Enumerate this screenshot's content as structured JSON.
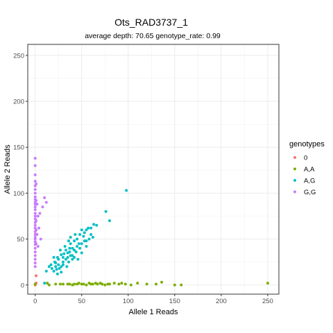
{
  "chart_data": {
    "type": "scatter",
    "title": "Ots_RAD3737_1",
    "subtitle": "average depth:  70.65  genotype_rate:  0.99",
    "xlabel": "Allele 1 Reads",
    "ylabel": "Allele 2 Reads",
    "xlim": [
      -8,
      262
    ],
    "ylim": [
      -10,
      262
    ],
    "xticks": [
      0,
      50,
      100,
      150,
      200,
      250
    ],
    "yticks": [
      0,
      50,
      100,
      150,
      200,
      250
    ],
    "grid": true,
    "legend": {
      "title": "genotypes",
      "placement": "right"
    },
    "series": [
      {
        "name": "0",
        "color": "#F8766D",
        "points": [
          [
            0,
            0
          ],
          [
            1,
            10
          ],
          [
            1,
            2
          ]
        ]
      },
      {
        "name": "A,A",
        "color": "#7CAE00",
        "points": [
          [
            0,
            1
          ],
          [
            13,
            2
          ],
          [
            15,
            0
          ],
          [
            22,
            1
          ],
          [
            27,
            1
          ],
          [
            30,
            1
          ],
          [
            35,
            1
          ],
          [
            37,
            1
          ],
          [
            40,
            0
          ],
          [
            42,
            1
          ],
          [
            45,
            1
          ],
          [
            47,
            2
          ],
          [
            50,
            1
          ],
          [
            52,
            1
          ],
          [
            55,
            0
          ],
          [
            58,
            2
          ],
          [
            60,
            1
          ],
          [
            62,
            1
          ],
          [
            65,
            2
          ],
          [
            67,
            1
          ],
          [
            70,
            2
          ],
          [
            72,
            1
          ],
          [
            75,
            0
          ],
          [
            78,
            1
          ],
          [
            80,
            1
          ],
          [
            85,
            2
          ],
          [
            90,
            1
          ],
          [
            93,
            2
          ],
          [
            97,
            1
          ],
          [
            103,
            0
          ],
          [
            110,
            2
          ],
          [
            120,
            1
          ],
          [
            130,
            1
          ],
          [
            136,
            3
          ],
          [
            150,
            0
          ],
          [
            157,
            0
          ],
          [
            250,
            2
          ]
        ]
      },
      {
        "name": "A,G",
        "color": "#00BFC4",
        "points": [
          [
            98,
            103
          ],
          [
            76,
            80
          ],
          [
            80,
            70
          ],
          [
            63,
            66
          ],
          [
            55,
            60
          ],
          [
            53,
            57
          ],
          [
            66,
            65
          ],
          [
            57,
            62
          ],
          [
            60,
            62
          ],
          [
            60,
            55
          ],
          [
            62,
            52
          ],
          [
            48,
            55
          ],
          [
            50,
            60
          ],
          [
            52,
            53
          ],
          [
            45,
            50
          ],
          [
            47,
            45
          ],
          [
            42,
            48
          ],
          [
            38,
            45
          ],
          [
            40,
            40
          ],
          [
            37,
            40
          ],
          [
            35,
            35
          ],
          [
            33,
            38
          ],
          [
            30,
            30
          ],
          [
            28,
            33
          ],
          [
            25,
            28
          ],
          [
            30,
            25
          ],
          [
            22,
            24
          ],
          [
            20,
            30
          ],
          [
            22,
            20
          ],
          [
            23,
            17
          ],
          [
            20,
            15
          ],
          [
            25,
            22
          ],
          [
            35,
            30
          ],
          [
            42,
            38
          ],
          [
            45,
            42
          ],
          [
            50,
            45
          ],
          [
            55,
            48
          ],
          [
            40,
            32
          ],
          [
            33,
            28
          ],
          [
            28,
            20
          ],
          [
            18,
            18
          ],
          [
            15,
            20
          ],
          [
            17,
            22
          ],
          [
            12,
            15
          ],
          [
            30,
            22
          ],
          [
            36,
            25
          ],
          [
            38,
            32
          ],
          [
            44,
            36
          ],
          [
            48,
            40
          ],
          [
            53,
            48
          ],
          [
            46,
            28
          ],
          [
            27,
            38
          ],
          [
            32,
            42
          ],
          [
            36,
            48
          ],
          [
            26,
            18
          ],
          [
            24,
            30
          ],
          [
            21,
            25
          ],
          [
            43,
            55
          ],
          [
            38,
            52
          ],
          [
            58,
            50
          ],
          [
            10,
            2
          ],
          [
            40,
            28
          ],
          [
            34,
            20
          ],
          [
            28,
            14
          ],
          [
            50,
            35
          ],
          [
            55,
            42
          ],
          [
            31,
            34
          ],
          [
            37,
            36
          ],
          [
            42,
            30
          ],
          [
            24,
            12
          ]
        ]
      },
      {
        "name": "G,G",
        "color": "#C77CFF",
        "points": [
          [
            0,
            138
          ],
          [
            0,
            130
          ],
          [
            0,
            120
          ],
          [
            0,
            113
          ],
          [
            0,
            108
          ],
          [
            0,
            104
          ],
          [
            0,
            100
          ],
          [
            0,
            96
          ],
          [
            0,
            93
          ],
          [
            0,
            90
          ],
          [
            0,
            88
          ],
          [
            0,
            85
          ],
          [
            0,
            82
          ],
          [
            0,
            78
          ],
          [
            0,
            75
          ],
          [
            0,
            72
          ],
          [
            0,
            68
          ],
          [
            0,
            65
          ],
          [
            0,
            62
          ],
          [
            0,
            58
          ],
          [
            0,
            55
          ],
          [
            0,
            52
          ],
          [
            0,
            50
          ],
          [
            0,
            47
          ],
          [
            0,
            44
          ],
          [
            0,
            40
          ],
          [
            0,
            36
          ],
          [
            0,
            32
          ],
          [
            0,
            28
          ],
          [
            0,
            24
          ],
          [
            0,
            20
          ],
          [
            1,
            110
          ],
          [
            1,
            92
          ],
          [
            1,
            70
          ],
          [
            1,
            60
          ],
          [
            1,
            45
          ],
          [
            2,
            88
          ],
          [
            2,
            55
          ],
          [
            3,
            75
          ],
          [
            3,
            42
          ],
          [
            4,
            62
          ],
          [
            5,
            78
          ],
          [
            6,
            50
          ],
          [
            8,
            85
          ],
          [
            10,
            95
          ],
          [
            12,
            90
          ]
        ]
      }
    ]
  }
}
